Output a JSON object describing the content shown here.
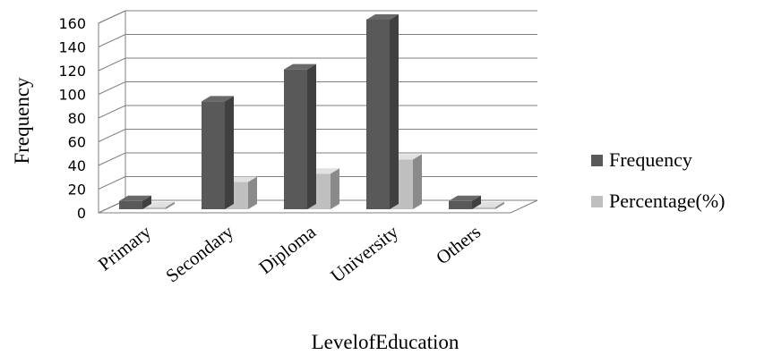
{
  "chart_data": {
    "type": "bar",
    "variant": "3d-clustered-column",
    "title": "",
    "xlabel": "LevelofEducation",
    "ylabel": "Frequency",
    "ylim": [
      0,
      160
    ],
    "yticks": [
      "0",
      "20",
      "40",
      "60",
      "80",
      "100",
      "120",
      "140",
      "160"
    ],
    "grid": true,
    "legend_position": "right",
    "categories": [
      "Primary",
      "Secondary",
      "Diploma",
      "University",
      "Others"
    ],
    "series": [
      {
        "name": "Frequency",
        "color": "#595959",
        "values": [
          7,
          91,
          118,
          160,
          7
        ]
      },
      {
        "name": "Percentage(%)",
        "color": "#bfbfbf",
        "values": [
          1.8,
          23,
          30,
          42,
          1.8
        ]
      }
    ]
  }
}
